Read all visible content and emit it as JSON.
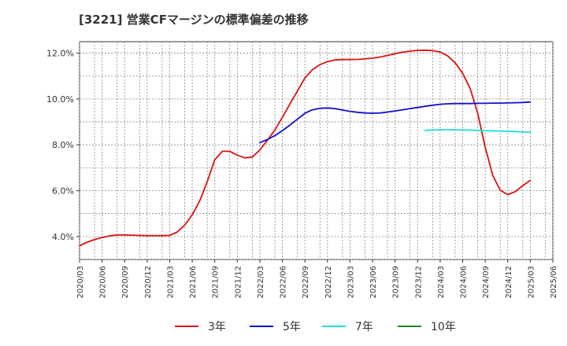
{
  "chart_data": {
    "type": "line",
    "title": "[3221]  営業CFマージンの標準偏差の推移",
    "xlabel": "",
    "ylabel": "",
    "ylim": [
      3.0,
      12.5
    ],
    "y_ticks": [
      4.0,
      6.0,
      8.0,
      10.0,
      12.0
    ],
    "y_tick_labels": [
      "4.0%",
      "6.0%",
      "8.0%",
      "10.0%",
      "12.0%"
    ],
    "x_ticks": [
      "2020/03",
      "2020/06",
      "2020/09",
      "2020/12",
      "2021/03",
      "2021/06",
      "2021/09",
      "2021/12",
      "2022/03",
      "2022/06",
      "2022/09",
      "2022/12",
      "2023/03",
      "2023/06",
      "2023/09",
      "2023/12",
      "2024/03",
      "2024/06",
      "2024/09",
      "2024/12",
      "2025/03",
      "2025/06"
    ],
    "grid": true,
    "legend_position": "bottom",
    "series": [
      {
        "name": "3年",
        "color": "#dd1111",
        "points": [
          [
            "2020/03",
            3.6
          ],
          [
            "2020/04",
            3.75
          ],
          [
            "2020/05",
            3.87
          ],
          [
            "2020/06",
            3.96
          ],
          [
            "2020/07",
            4.03
          ],
          [
            "2020/08",
            4.07
          ],
          [
            "2020/09",
            4.07
          ],
          [
            "2020/10",
            4.06
          ],
          [
            "2020/11",
            4.05
          ],
          [
            "2020/12",
            4.04
          ],
          [
            "2021/01",
            4.04
          ],
          [
            "2021/02",
            4.04
          ],
          [
            "2021/03",
            4.05
          ],
          [
            "2021/04",
            4.2
          ],
          [
            "2021/05",
            4.5
          ],
          [
            "2021/06",
            4.95
          ],
          [
            "2021/07",
            5.55
          ],
          [
            "2021/08",
            6.4
          ],
          [
            "2021/09",
            7.35
          ],
          [
            "2021/10",
            7.72
          ],
          [
            "2021/11",
            7.72
          ],
          [
            "2021/12",
            7.55
          ],
          [
            "2022/01",
            7.43
          ],
          [
            "2022/02",
            7.47
          ],
          [
            "2022/03",
            7.78
          ],
          [
            "2022/04",
            8.2
          ],
          [
            "2022/05",
            8.65
          ],
          [
            "2022/06",
            9.2
          ],
          [
            "2022/07",
            9.78
          ],
          [
            "2022/08",
            10.35
          ],
          [
            "2022/09",
            10.92
          ],
          [
            "2022/10",
            11.28
          ],
          [
            "2022/11",
            11.5
          ],
          [
            "2022/12",
            11.63
          ],
          [
            "2023/01",
            11.7
          ],
          [
            "2023/02",
            11.72
          ],
          [
            "2023/03",
            11.72
          ],
          [
            "2023/04",
            11.73
          ],
          [
            "2023/05",
            11.75
          ],
          [
            "2023/06",
            11.78
          ],
          [
            "2023/07",
            11.83
          ],
          [
            "2023/08",
            11.9
          ],
          [
            "2023/09",
            11.98
          ],
          [
            "2023/10",
            12.04
          ],
          [
            "2023/11",
            12.09
          ],
          [
            "2023/12",
            12.12
          ],
          [
            "2024/01",
            12.13
          ],
          [
            "2024/02",
            12.11
          ],
          [
            "2024/03",
            12.05
          ],
          [
            "2024/04",
            11.88
          ],
          [
            "2024/05",
            11.58
          ],
          [
            "2024/06",
            11.12
          ],
          [
            "2024/07",
            10.45
          ],
          [
            "2024/08",
            9.38
          ],
          [
            "2024/09",
            7.9
          ],
          [
            "2024/10",
            6.67
          ],
          [
            "2024/11",
            6.02
          ],
          [
            "2024/12",
            5.83
          ],
          [
            "2025/01",
            5.96
          ],
          [
            "2025/02",
            6.22
          ],
          [
            "2025/03",
            6.45
          ]
        ]
      },
      {
        "name": "5年",
        "color": "#1111cc",
        "points": [
          [
            "2022/03",
            8.1
          ],
          [
            "2022/04",
            8.23
          ],
          [
            "2022/05",
            8.4
          ],
          [
            "2022/06",
            8.62
          ],
          [
            "2022/07",
            8.86
          ],
          [
            "2022/08",
            9.12
          ],
          [
            "2022/09",
            9.38
          ],
          [
            "2022/10",
            9.53
          ],
          [
            "2022/11",
            9.59
          ],
          [
            "2022/12",
            9.61
          ],
          [
            "2023/01",
            9.58
          ],
          [
            "2023/02",
            9.52
          ],
          [
            "2023/03",
            9.46
          ],
          [
            "2023/04",
            9.42
          ],
          [
            "2023/05",
            9.39
          ],
          [
            "2023/06",
            9.38
          ],
          [
            "2023/07",
            9.39
          ],
          [
            "2023/08",
            9.43
          ],
          [
            "2023/09",
            9.48
          ],
          [
            "2023/10",
            9.53
          ],
          [
            "2023/11",
            9.58
          ],
          [
            "2023/12",
            9.63
          ],
          [
            "2024/01",
            9.68
          ],
          [
            "2024/02",
            9.73
          ],
          [
            "2024/03",
            9.77
          ],
          [
            "2024/04",
            9.79
          ],
          [
            "2024/05",
            9.8
          ],
          [
            "2024/06",
            9.8
          ],
          [
            "2024/07",
            9.8
          ],
          [
            "2024/08",
            9.81
          ],
          [
            "2024/09",
            9.81
          ],
          [
            "2024/10",
            9.82
          ],
          [
            "2024/11",
            9.82
          ],
          [
            "2024/12",
            9.83
          ],
          [
            "2025/01",
            9.84
          ],
          [
            "2025/02",
            9.85
          ],
          [
            "2025/03",
            9.87
          ]
        ]
      },
      {
        "name": "7年",
        "color": "#22dddd",
        "points": [
          [
            "2024/01",
            8.63
          ],
          [
            "2024/02",
            8.65
          ],
          [
            "2024/03",
            8.66
          ],
          [
            "2024/04",
            8.66
          ],
          [
            "2024/05",
            8.66
          ],
          [
            "2024/06",
            8.65
          ],
          [
            "2024/07",
            8.64
          ],
          [
            "2024/08",
            8.63
          ],
          [
            "2024/09",
            8.62
          ],
          [
            "2024/10",
            8.61
          ],
          [
            "2024/11",
            8.6
          ],
          [
            "2024/12",
            8.59
          ],
          [
            "2025/01",
            8.58
          ],
          [
            "2025/02",
            8.56
          ],
          [
            "2025/03",
            8.55
          ]
        ]
      },
      {
        "name": "10年",
        "color": "#228822",
        "points": []
      }
    ]
  }
}
